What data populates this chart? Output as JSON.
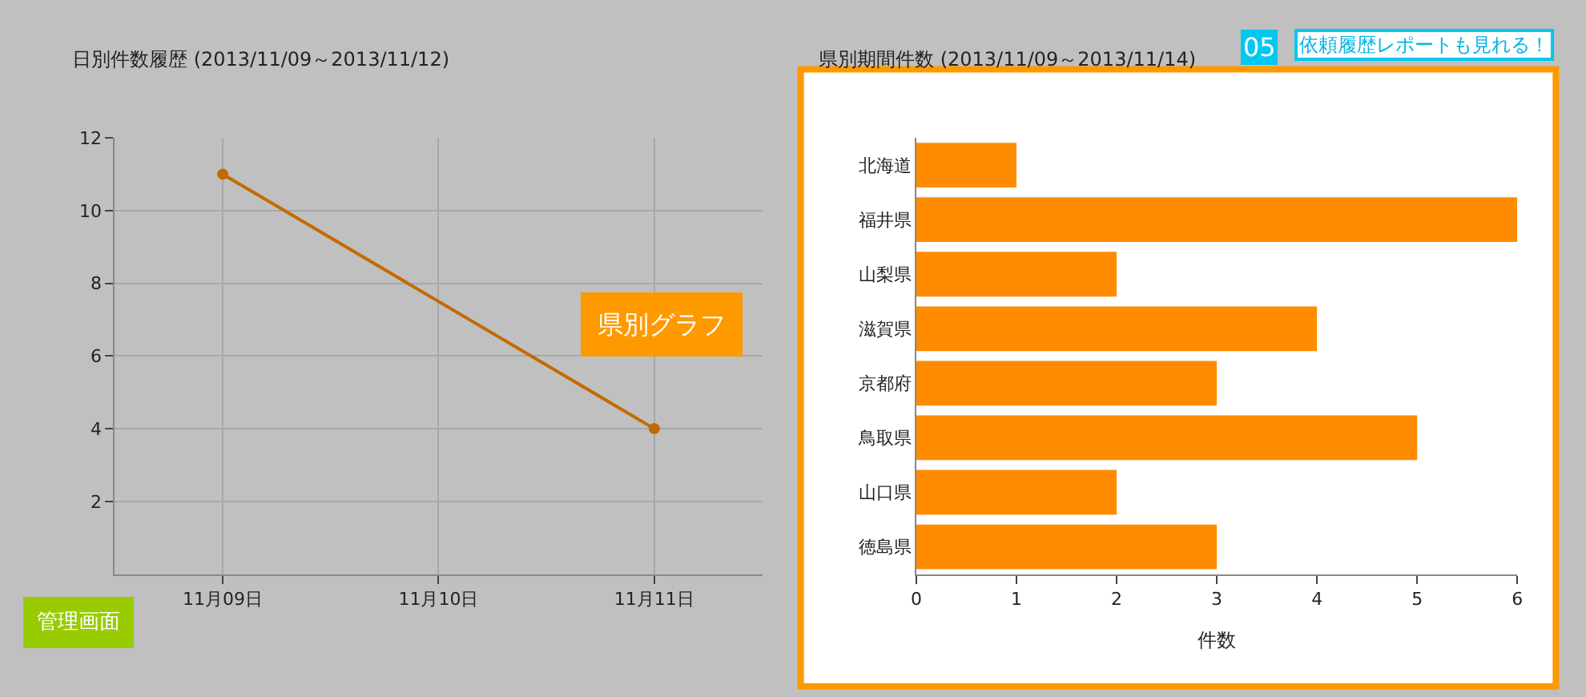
{
  "chart_data": [
    {
      "type": "line",
      "title": "日別件数履歴 (2013/11/09～2013/11/12)",
      "categories": [
        "11月09日",
        "11月10日",
        "11月11日"
      ],
      "series": [
        {
          "color": "#c46a00",
          "values": [
            11,
            null,
            4
          ]
        }
      ],
      "ylim": [
        0,
        12
      ],
      "yticks": [
        2,
        4,
        6,
        8,
        10,
        12
      ],
      "grid": true,
      "marker": "circle",
      "line_style": "solid",
      "annotations": [
        "管理画面"
      ]
    },
    {
      "type": "bar",
      "orientation": "horizontal",
      "title": "県別期間件数 (2013/11/09～2013/11/14)",
      "categories": [
        "北海道",
        "福井県",
        "山梨県",
        "滋賀県",
        "京都府",
        "鳥取県",
        "山口県",
        "徳島県"
      ],
      "values": [
        1,
        6,
        2,
        4,
        3,
        5,
        2,
        3
      ],
      "color": "#ff8c00",
      "xlim": [
        0,
        6
      ],
      "xticks": [
        0,
        1,
        2,
        3,
        4,
        5,
        6
      ],
      "xlabel": "件数",
      "grid": false,
      "annotations": [
        "05",
        "依頼履歴レポートも見れる！",
        "県別グラフ"
      ]
    }
  ]
}
